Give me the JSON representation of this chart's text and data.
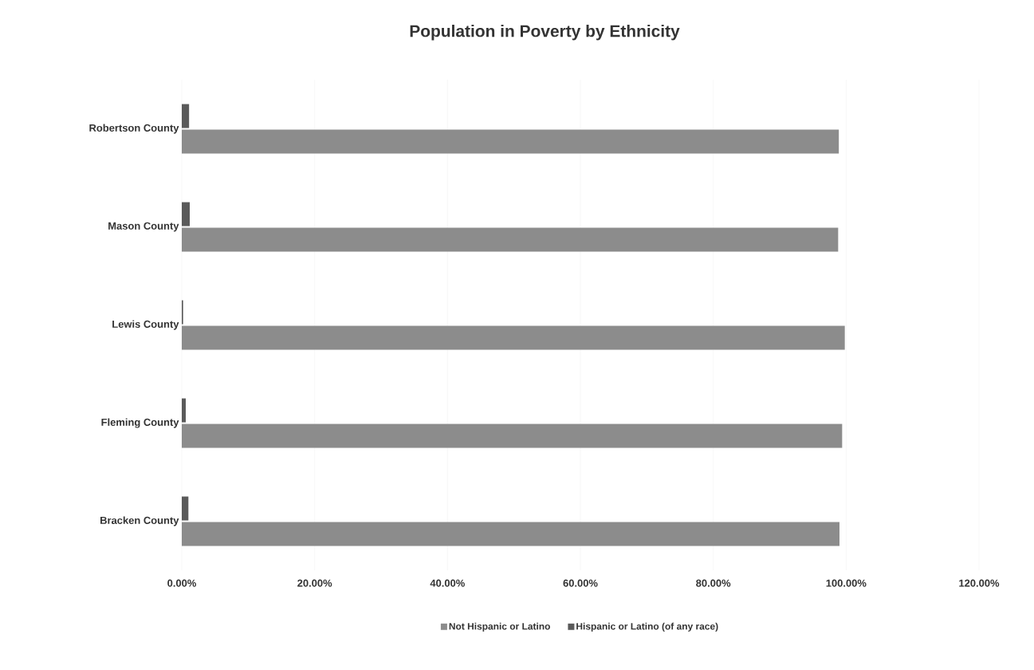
{
  "chart_data": {
    "type": "bar",
    "orientation": "horizontal",
    "title": "Population in Poverty by Ethnicity",
    "categories": [
      "Robertson County",
      "Mason County",
      "Lewis County",
      "Fleming County",
      "Bracken County"
    ],
    "series": [
      {
        "name": "Not Hispanic or Latino",
        "color": "#8c8c8c",
        "values": [
          98.9,
          98.8,
          99.8,
          99.4,
          99.0
        ]
      },
      {
        "name": "Hispanic or Latino  (of any race)",
        "color": "#5a5a5a",
        "values": [
          1.1,
          1.2,
          0.2,
          0.6,
          1.0
        ]
      }
    ],
    "xlim": [
      0,
      120
    ],
    "xticks": [
      {
        "value": 0,
        "label": "0.00%"
      },
      {
        "value": 20,
        "label": "20.00%"
      },
      {
        "value": 40,
        "label": "40.00%"
      },
      {
        "value": 60,
        "label": "60.00%"
      },
      {
        "value": 80,
        "label": "80.00%"
      },
      {
        "value": 100,
        "label": "100.00%"
      },
      {
        "value": 120,
        "label": "120.00%"
      }
    ],
    "grid": "x",
    "legend": "bottom"
  }
}
